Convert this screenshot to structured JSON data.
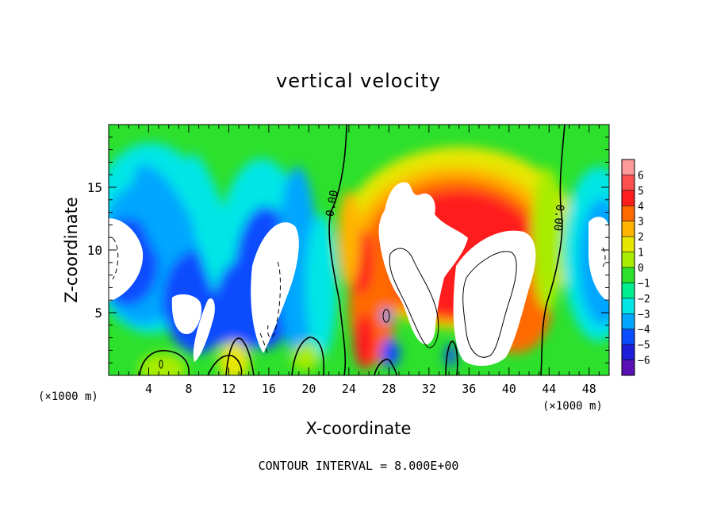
{
  "chart_data": {
    "type": "heatmap",
    "title": "vertical velocity",
    "xlabel": "X-coordinate",
    "ylabel": "Z-coordinate",
    "x_unit_left": "(×1000 m)",
    "x_unit_right": "(×1000 m)",
    "xlim": [
      0,
      50
    ],
    "ylim": [
      0,
      20
    ],
    "xticks": [
      "4",
      "8",
      "12",
      "16",
      "20",
      "24",
      "28",
      "32",
      "36",
      "40",
      "44",
      "48"
    ],
    "yticks": [
      "5",
      "10",
      "15"
    ],
    "colorbar": {
      "labels": [
        "6",
        "5",
        "4",
        "3",
        "2",
        "1",
        "0",
        "−1",
        "−2",
        "−3",
        "−4",
        "−5",
        "−6"
      ],
      "colors": [
        "#ff9a9a",
        "#ff5050",
        "#ff1e1e",
        "#ff6a00",
        "#ffb400",
        "#e6e600",
        "#a8ec00",
        "#2ce02c",
        "#00ee90",
        "#00e6e6",
        "#00a6ff",
        "#0a4cff",
        "#1e1ed8",
        "#5a10b4"
      ]
    },
    "contour_label": "0.00",
    "contour_interval_text": "CONTOUR INTERVAL = 8.000E+00"
  }
}
